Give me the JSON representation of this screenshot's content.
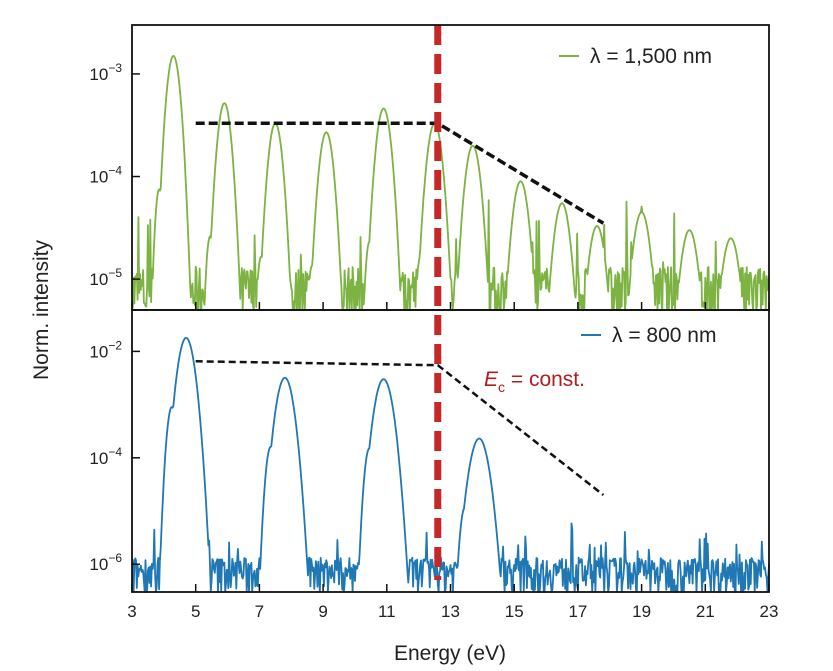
{
  "chart_data": [
    {
      "type": "line",
      "panel": "top",
      "yscale": "log",
      "ylim": [
        5e-06,
        0.003
      ],
      "xlim": [
        3,
        23
      ],
      "y_ticks": [
        {
          "value": 0.001,
          "base": "10",
          "exp": "−3"
        },
        {
          "value": 0.0001,
          "base": "10",
          "exp": "−4"
        },
        {
          "value": 1e-05,
          "base": "10",
          "exp": "−5"
        }
      ],
      "series": [
        {
          "name": "λ = 1,500 nm",
          "color": "#7cb342",
          "peaks": [
            {
              "x": 4.3,
              "y": 0.0015
            },
            {
              "x": 5.9,
              "y": 0.00052
            },
            {
              "x": 7.5,
              "y": 0.00033
            },
            {
              "x": 9.1,
              "y": 0.00027
            },
            {
              "x": 10.9,
              "y": 0.00046
            },
            {
              "x": 12.5,
              "y": 0.00033
            },
            {
              "x": 13.7,
              "y": 0.0002
            },
            {
              "x": 15.2,
              "y": 9e-05
            },
            {
              "x": 16.5,
              "y": 5.5e-05
            },
            {
              "x": 17.6,
              "y": 3.3e-05
            },
            {
              "x": 19.0,
              "y": 4.5e-05
            },
            {
              "x": 20.5,
              "y": 3e-05
            },
            {
              "x": 21.8,
              "y": 2.5e-05
            }
          ],
          "noise_floor": 7e-06
        }
      ],
      "guide_line": [
        {
          "x": 5.0,
          "y": 0.00033
        },
        {
          "x": 12.6,
          "y": 0.00033
        },
        {
          "x": 17.8,
          "y": 3.5e-05
        }
      ]
    },
    {
      "type": "line",
      "panel": "bottom",
      "yscale": "log",
      "ylim": [
        3e-07,
        0.06
      ],
      "xlim": [
        3,
        23
      ],
      "y_ticks": [
        {
          "value": 0.01,
          "base": "10",
          "exp": "−2"
        },
        {
          "value": 0.0001,
          "base": "10",
          "exp": "−4"
        },
        {
          "value": 1e-06,
          "base": "10",
          "exp": "−6"
        }
      ],
      "series": [
        {
          "name": "λ = 800 nm",
          "color": "#1f77b4",
          "peaks": [
            {
              "x": 4.7,
              "y": 0.018
            },
            {
              "x": 7.8,
              "y": 0.0032
            },
            {
              "x": 10.9,
              "y": 0.003
            },
            {
              "x": 13.9,
              "y": 0.00023
            }
          ],
          "noise_floor": 7e-07
        }
      ],
      "guide_line": [
        {
          "x": 5.0,
          "y": 0.0065
        },
        {
          "x": 12.6,
          "y": 0.0055
        },
        {
          "x": 17.8,
          "y": 2e-05
        }
      ]
    }
  ],
  "shared": {
    "x_ticks": [
      3,
      5,
      7,
      9,
      11,
      13,
      15,
      17,
      19,
      21,
      23
    ],
    "xlabel": "Energy (eV)",
    "ylabel": "Norm. intensity",
    "cutoff_x": 12.6,
    "cutoff_color": "#c62828",
    "annotation": {
      "base": "E",
      "sub": "c",
      "rest": " = const."
    }
  }
}
